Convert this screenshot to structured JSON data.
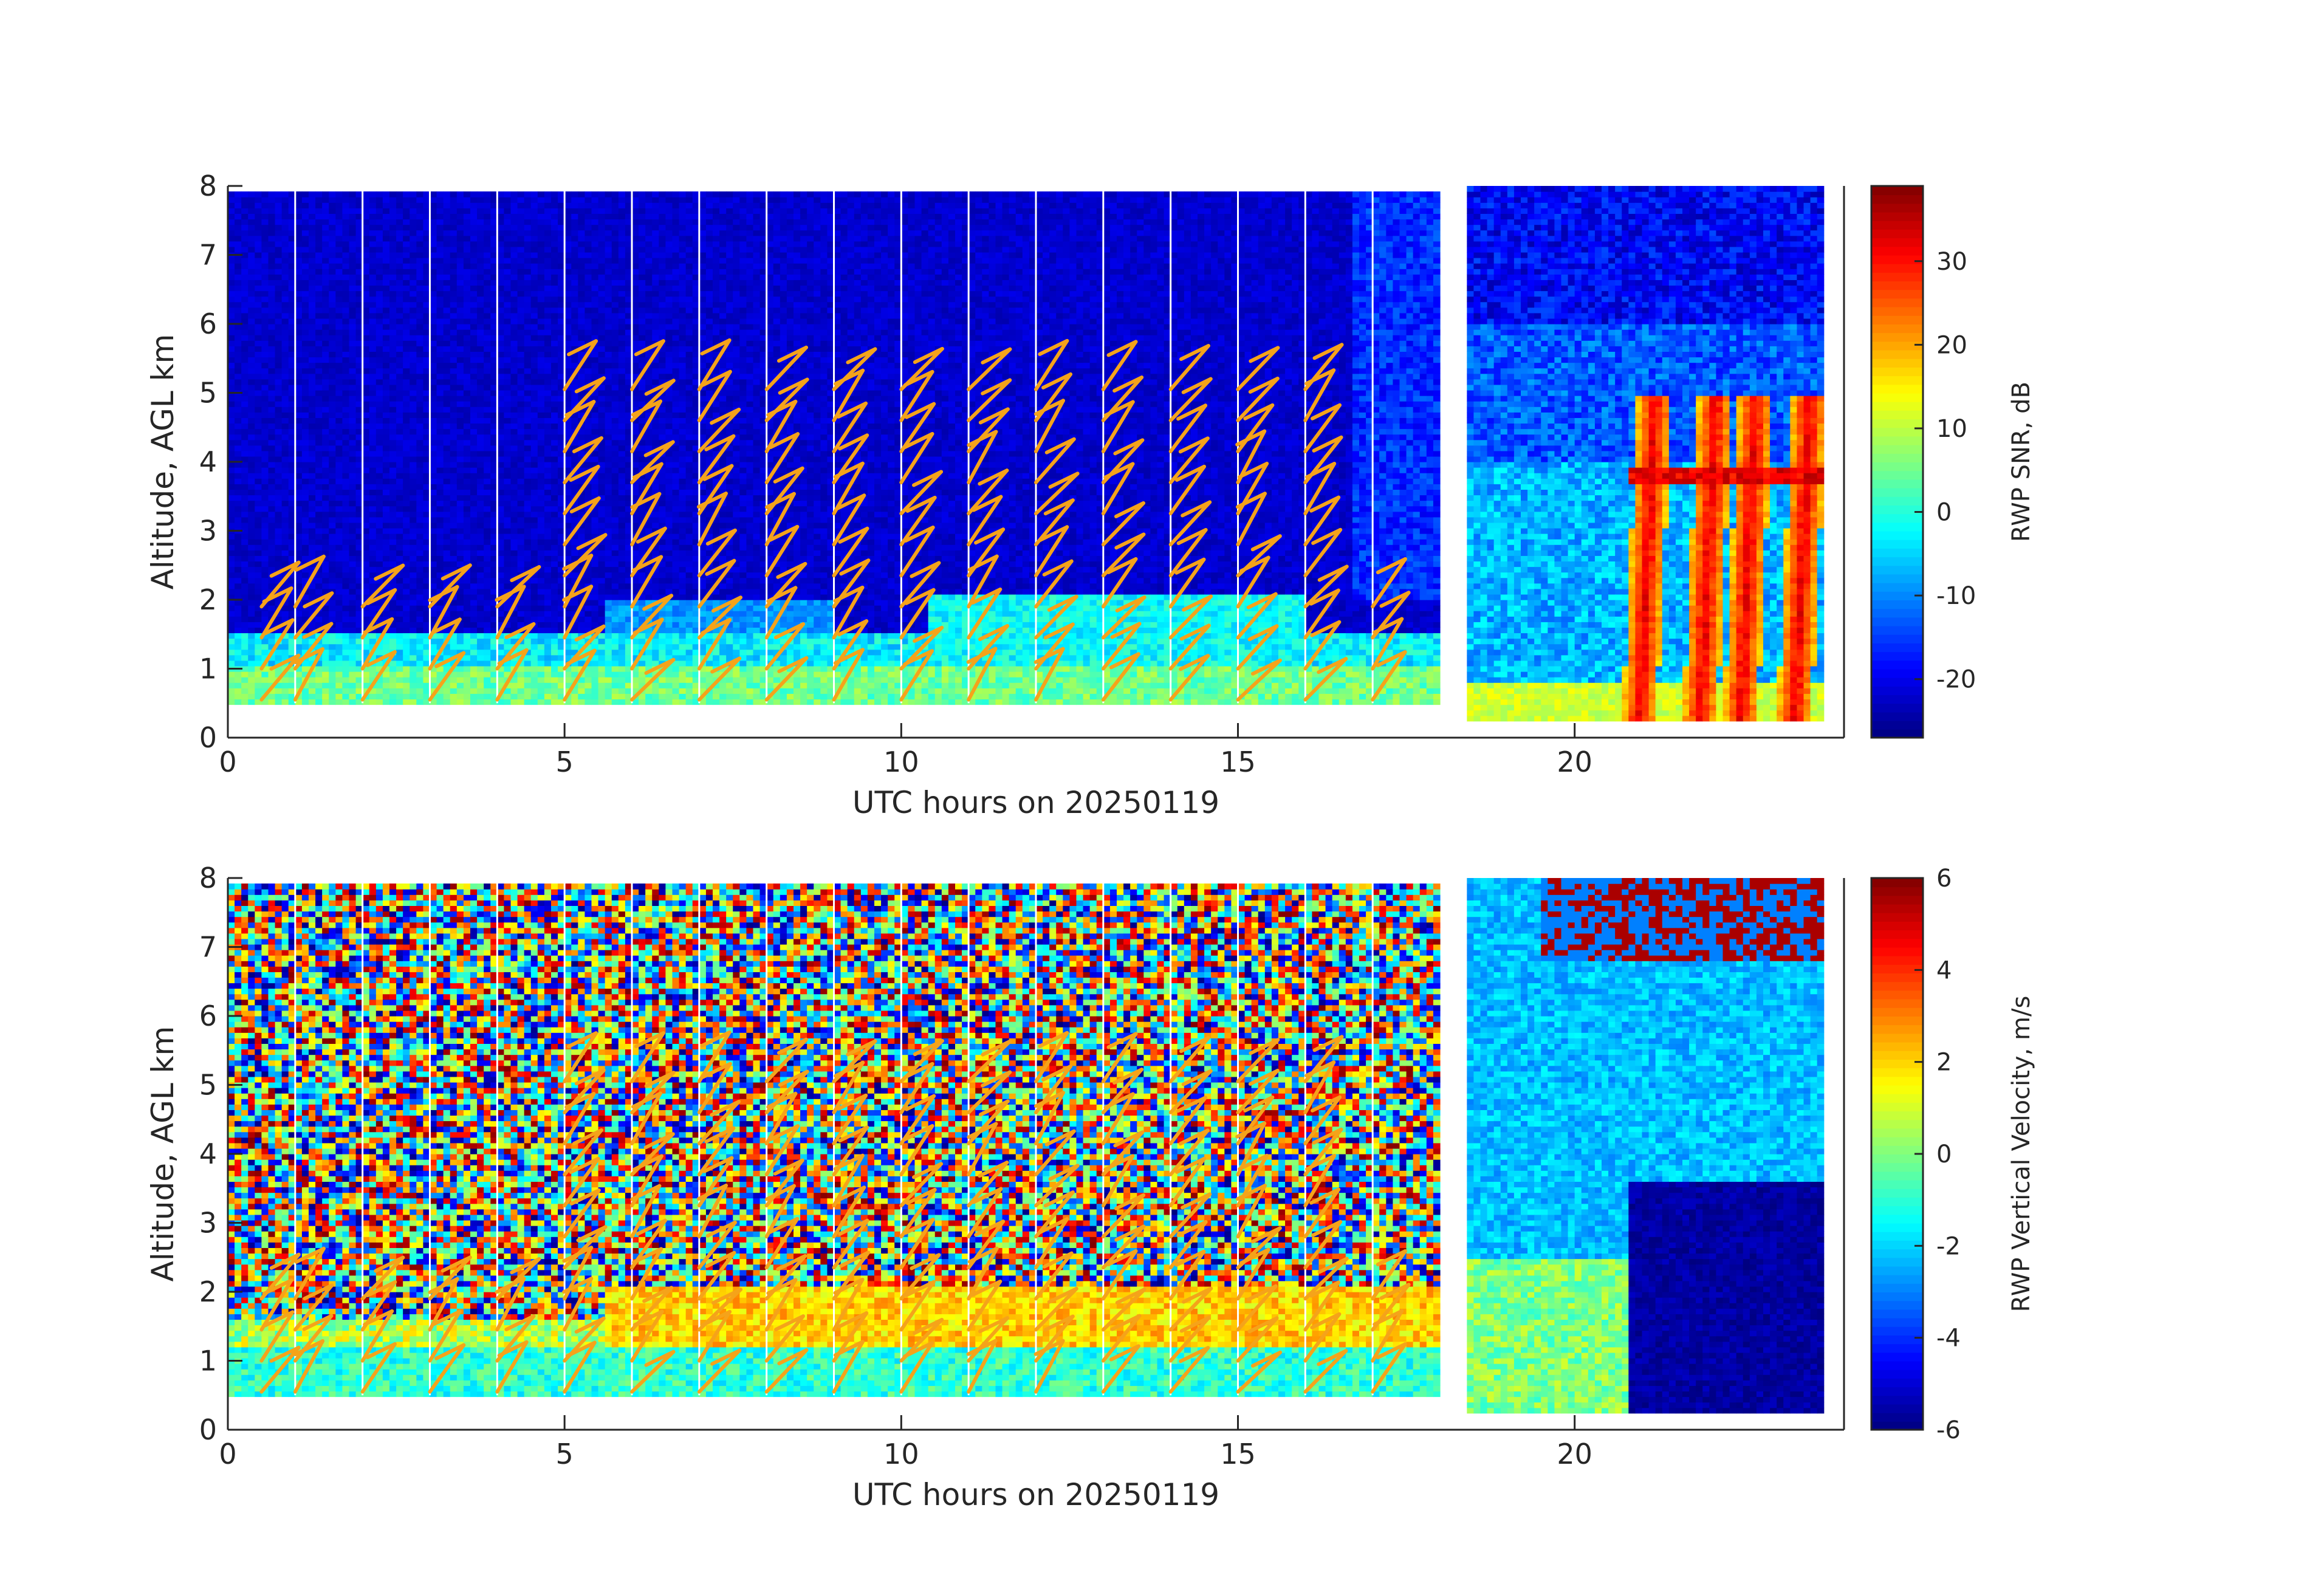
{
  "chart_data": [
    {
      "type": "heatmap",
      "title": "",
      "xlabel": "UTC hours on 20250119",
      "ylabel": "Altitude, AGL km",
      "xlim": [
        0,
        24
      ],
      "ylim": [
        0,
        8
      ],
      "xticks": [
        0,
        5,
        10,
        15,
        20
      ],
      "yticks": [
        0,
        1,
        2,
        3,
        4,
        5,
        6,
        7,
        8
      ],
      "colormap": "jet",
      "colorbar": {
        "label": "RWP SNR, dB",
        "range": [
          -27,
          39
        ],
        "ticks": [
          -20,
          -10,
          0,
          10,
          20,
          30
        ]
      },
      "data_gap_hours": [
        17.95,
        18.15
      ],
      "features": {
        "cloud_layer_top_km": 2.0,
        "strong_layer_km": [
          3.7,
          3.9
        ],
        "rain_columns_hours": [
          21.0,
          21.9,
          22.5,
          23.3
        ]
      },
      "overlay": {
        "name": "wind barbs",
        "color": "#f5a31a",
        "hours": [
          0.5,
          1.0,
          2.0,
          3.0,
          4.0,
          5.0,
          6.0,
          7.0,
          8.0,
          9.0,
          10.0,
          11.0,
          12.0,
          13.0,
          14.0,
          15.0,
          16.0,
          17.0
        ]
      },
      "grid": false,
      "legend": "none"
    },
    {
      "type": "heatmap",
      "title": "",
      "xlabel": "UTC hours on 20250119",
      "ylabel": "Altitude, AGL km",
      "xlim": [
        0,
        24
      ],
      "ylim": [
        0,
        8
      ],
      "xticks": [
        0,
        5,
        10,
        15,
        20
      ],
      "yticks": [
        0,
        1,
        2,
        3,
        4,
        5,
        6,
        7,
        8
      ],
      "colormap": "jet",
      "colorbar": {
        "label": "RWP Vertical Velocity, m/s",
        "range": [
          -6,
          6
        ],
        "ticks": [
          -6,
          -4,
          -2,
          0,
          2,
          4,
          6
        ]
      },
      "data_gap_hours": [
        17.95,
        18.15
      ],
      "features": {
        "updraft_layer_km": [
          1.2,
          2.1
        ],
        "downdraft_region_km": [
          0.2,
          3.6
        ],
        "downdraft_hours": [
          20.8,
          24.0
        ]
      },
      "overlay": {
        "name": "wind barbs",
        "color": "#f5a31a",
        "hours": [
          0.5,
          1.0,
          2.0,
          3.0,
          4.0,
          5.0,
          6.0,
          7.0,
          8.0,
          9.0,
          10.0,
          11.0,
          12.0,
          13.0,
          14.0,
          15.0,
          16.0,
          17.0
        ]
      },
      "grid": false,
      "legend": "none"
    }
  ]
}
